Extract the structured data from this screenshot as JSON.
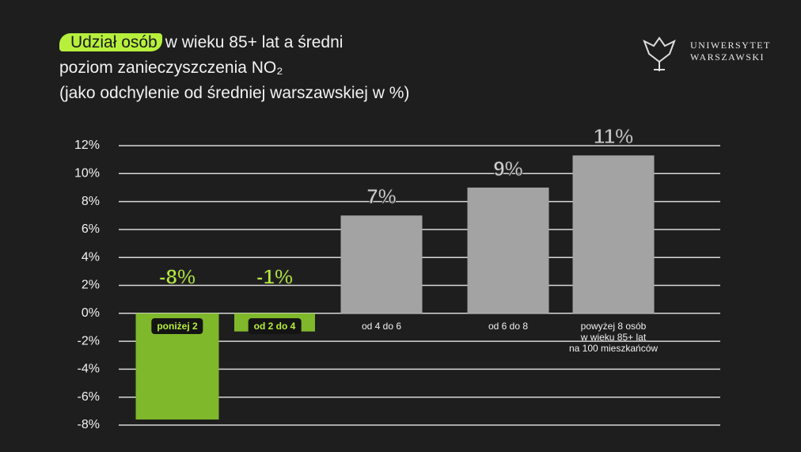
{
  "chart_data": {
    "type": "bar",
    "title_highlight": "Udział osób",
    "title": "w wieku 85+ lat a średni\npoziom zanieczyszczenia NO₂\n(jako odchylenie od średniej warszawskiej w %)",
    "logo": [
      "UNIWERSYTET",
      "WARSZAWSKI"
    ],
    "categories": [
      "poniżej 2",
      "od 2 do 4",
      "od 4 do 6",
      "od 6 do 8",
      "powyżej 8 osób\nw wieku 85+ lat\nna 100 mieszkańców"
    ],
    "values": [
      -7.6,
      -1.3,
      7,
      9,
      11.3
    ],
    "value_labels": [
      "-8%",
      "-1%",
      "7%",
      "9%",
      "11%"
    ],
    "colors": [
      "#7fb82a",
      "#7fb82a",
      "#a3a3a3",
      "#a3a3a3",
      "#a3a3a3"
    ],
    "ylim": [
      -8,
      12
    ],
    "yticks": [
      {
        "value": -8,
        "label": "-8%"
      },
      {
        "value": -6,
        "label": "-6%"
      },
      {
        "value": -4,
        "label": "-4%"
      },
      {
        "value": -2,
        "label": "-2%"
      },
      {
        "value": 0,
        "label": "0%"
      },
      {
        "value": 2,
        "label": "2%"
      },
      {
        "value": 4,
        "label": "4%"
      },
      {
        "value": 6,
        "label": "6%"
      },
      {
        "value": 8,
        "label": "8%"
      },
      {
        "value": 10,
        "label": "10%"
      },
      {
        "value": 12,
        "label": "12%"
      }
    ],
    "grid": true
  }
}
